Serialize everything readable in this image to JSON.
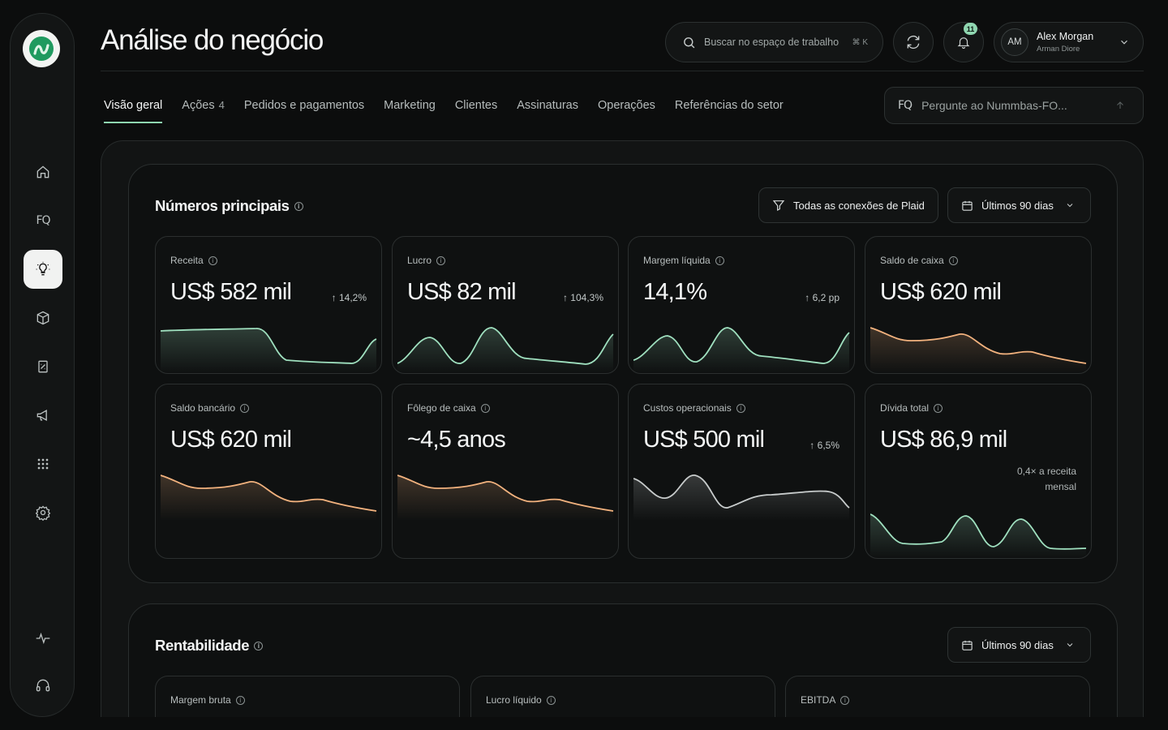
{
  "header": {
    "title": "Análise do negócio",
    "search_placeholder": "Buscar no espaço de trabalho",
    "search_shortcut": "⌘ K",
    "notifications_count": "11",
    "user_initials": "AM",
    "user_name": "Alex Morgan",
    "user_org": "Arman Diore"
  },
  "sidebar": {
    "items": [
      {
        "name": "home",
        "icon": "home-icon"
      },
      {
        "name": "fq",
        "icon": "fq-icon",
        "glyph": "FQ"
      },
      {
        "name": "insights",
        "icon": "lightbulb-icon",
        "active": true
      },
      {
        "name": "products",
        "icon": "box-icon"
      },
      {
        "name": "reports",
        "icon": "report-icon"
      },
      {
        "name": "marketing",
        "icon": "megaphone-icon"
      },
      {
        "name": "apps",
        "icon": "grid-icon"
      },
      {
        "name": "settings",
        "icon": "gear-icon"
      },
      {
        "name": "activity",
        "icon": "pulse-icon"
      },
      {
        "name": "support",
        "icon": "headset-icon"
      }
    ]
  },
  "tabs": [
    {
      "label": "Visão geral",
      "active": true
    },
    {
      "label": "Ações",
      "count": "4"
    },
    {
      "label": "Pedidos e pagamentos"
    },
    {
      "label": "Marketing"
    },
    {
      "label": "Clientes"
    },
    {
      "label": "Assinaturas"
    },
    {
      "label": "Operações"
    },
    {
      "label": "Referências do setor"
    }
  ],
  "ask": {
    "glyph": "FQ",
    "placeholder": "Pergunte ao Nummbas-FO..."
  },
  "key_numbers": {
    "title": "Números principais",
    "filter_label": "Todas as conexões de Plaid",
    "period_label": "Últimos 90 dias",
    "cards": [
      {
        "label": "Receita",
        "value": "US$ 582 mil",
        "delta": "14,2%",
        "color": "#9fe0bf"
      },
      {
        "label": "Lucro",
        "value": "US$ 82 mil",
        "delta": "104,3%",
        "color": "#9fe0bf"
      },
      {
        "label": "Margem líquida",
        "value": "14,1%",
        "delta": "6,2 pp",
        "color": "#9fe0bf"
      },
      {
        "label": "Saldo de caixa",
        "value": "US$ 620 mil",
        "color": "#f2b27e"
      },
      {
        "label": "Saldo bancário",
        "value": "US$ 620 mil",
        "color": "#f2b27e"
      },
      {
        "label": "Fôlego de caixa",
        "value": "~4,5 anos",
        "color": "#f2b27e"
      },
      {
        "label": "Custos operacionais",
        "value": "US$ 500 mil",
        "delta": "6,5%",
        "color": "#c8cccc"
      },
      {
        "label": "Dívida total",
        "value": "US$ 86,9 mil",
        "note": "0,4× a receita mensal",
        "color": "#9fe0bf"
      }
    ]
  },
  "profitability": {
    "title": "Rentabilidade",
    "period_label": "Últimos 90 dias",
    "cards": [
      {
        "label": "Margem bruta"
      },
      {
        "label": "Lucro líquido"
      },
      {
        "label": "EBITDA"
      }
    ]
  },
  "colors": {
    "accent": "#8fd6b0",
    "positive_spark": "#9fe0bf",
    "warm_spark": "#f2b27e",
    "neutral_spark": "#c8cccc"
  }
}
